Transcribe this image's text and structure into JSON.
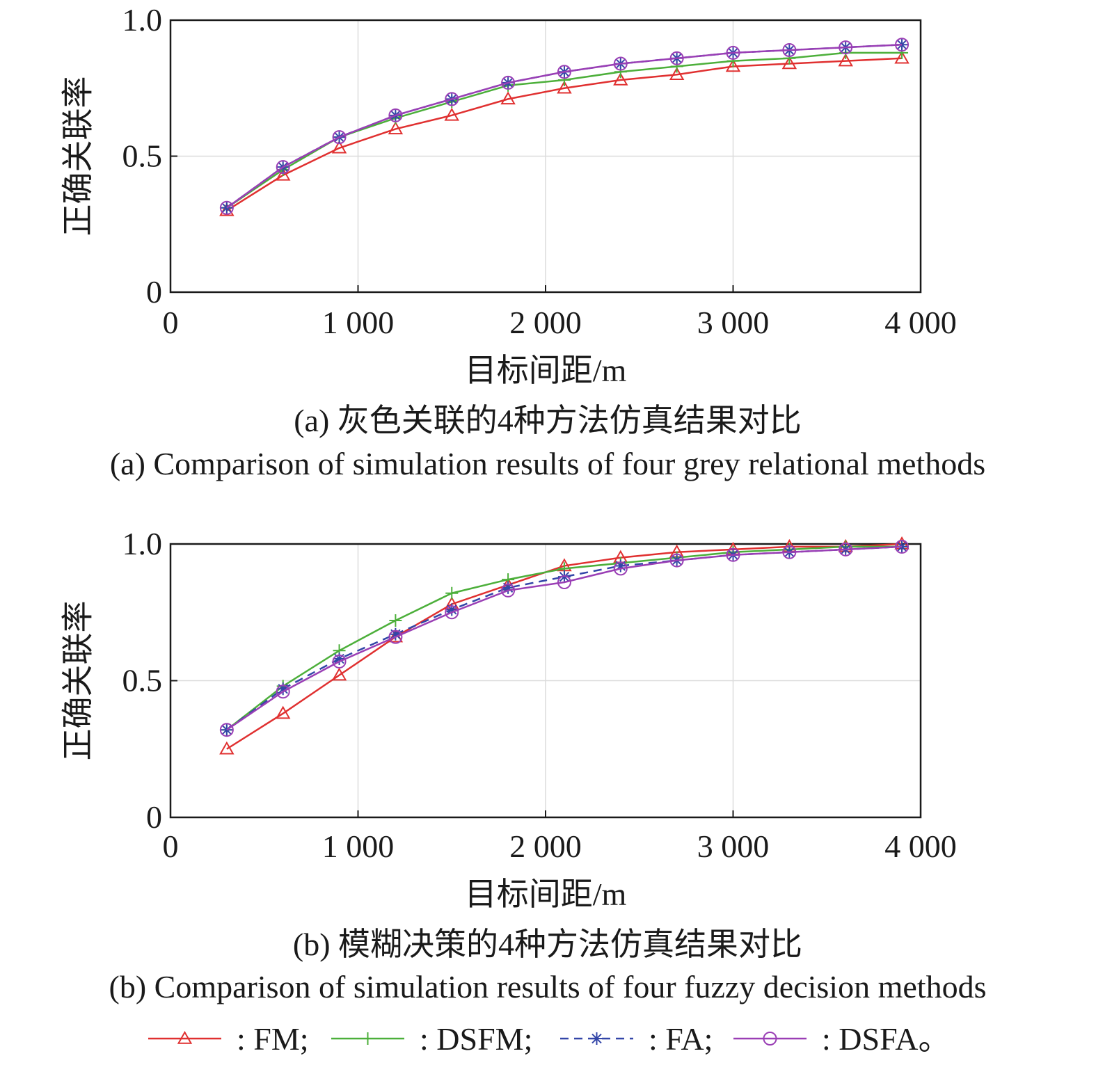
{
  "chart_data": [
    {
      "type": "line",
      "panel_cn": "(a) 灰色关联的4种方法仿真结果对比",
      "panel_en": "(a) Comparison of simulation results of four grey relational methods",
      "xlabel": "目标间距/m",
      "ylabel": "正确关联率",
      "xlim": [
        0,
        4000
      ],
      "ylim": [
        0,
        1.0
      ],
      "xticks": [
        "0",
        "1 000",
        "2 000",
        "3 000",
        "4 000"
      ],
      "yticks": [
        "0",
        "0.5",
        "1.0"
      ],
      "grid": true,
      "x": [
        300,
        600,
        900,
        1200,
        1500,
        1800,
        2100,
        2400,
        2700,
        3000,
        3300,
        3600,
        3900
      ],
      "series": [
        {
          "name": "FM",
          "color": "#e03030",
          "marker": "triangle",
          "dash": "solid",
          "values": [
            0.3,
            0.43,
            0.53,
            0.6,
            0.65,
            0.71,
            0.75,
            0.78,
            0.8,
            0.83,
            0.84,
            0.85,
            0.86
          ]
        },
        {
          "name": "DSFM",
          "color": "#4caf3a",
          "marker": "plus",
          "dash": "solid",
          "values": [
            0.31,
            0.45,
            0.57,
            0.64,
            0.7,
            0.76,
            0.78,
            0.81,
            0.83,
            0.85,
            0.86,
            0.88,
            0.88
          ]
        },
        {
          "name": "FA",
          "color": "#3346a8",
          "marker": "star",
          "dash": "dashed",
          "values": [
            0.31,
            0.46,
            0.57,
            0.65,
            0.71,
            0.77,
            0.81,
            0.84,
            0.86,
            0.88,
            0.89,
            0.9,
            0.91
          ]
        },
        {
          "name": "DSFA",
          "color": "#9a3fb5",
          "marker": "circle",
          "dash": "solid",
          "values": [
            0.31,
            0.46,
            0.57,
            0.65,
            0.71,
            0.77,
            0.81,
            0.84,
            0.86,
            0.88,
            0.89,
            0.9,
            0.91
          ]
        }
      ]
    },
    {
      "type": "line",
      "panel_cn": "(b) 模糊决策的4种方法仿真结果对比",
      "panel_en": "(b) Comparison of simulation results of four fuzzy decision methods",
      "xlabel": "目标间距/m",
      "ylabel": "正确关联率",
      "xlim": [
        0,
        4000
      ],
      "ylim": [
        0,
        1.0
      ],
      "xticks": [
        "0",
        "1 000",
        "2 000",
        "3 000",
        "4 000"
      ],
      "yticks": [
        "0",
        "0.5",
        "1.0"
      ],
      "grid": true,
      "x": [
        300,
        600,
        900,
        1200,
        1500,
        1800,
        2100,
        2400,
        2700,
        3000,
        3300,
        3600,
        3900
      ],
      "series": [
        {
          "name": "FM",
          "color": "#e03030",
          "marker": "triangle",
          "dash": "solid",
          "values": [
            0.25,
            0.38,
            0.52,
            0.66,
            0.78,
            0.85,
            0.92,
            0.95,
            0.97,
            0.98,
            0.99,
            0.99,
            1.0
          ]
        },
        {
          "name": "DSFM",
          "color": "#4caf3a",
          "marker": "plus",
          "dash": "solid",
          "values": [
            0.32,
            0.48,
            0.61,
            0.72,
            0.82,
            0.87,
            0.91,
            0.93,
            0.95,
            0.97,
            0.98,
            0.99,
            0.99
          ]
        },
        {
          "name": "FA",
          "color": "#3346a8",
          "marker": "star",
          "dash": "dashed",
          "values": [
            0.32,
            0.47,
            0.58,
            0.67,
            0.76,
            0.84,
            0.88,
            0.92,
            0.94,
            0.96,
            0.97,
            0.98,
            0.99
          ]
        },
        {
          "name": "DSFA",
          "color": "#9a3fb5",
          "marker": "circle",
          "dash": "solid",
          "values": [
            0.32,
            0.46,
            0.57,
            0.66,
            0.75,
            0.83,
            0.86,
            0.91,
            0.94,
            0.96,
            0.97,
            0.98,
            0.99
          ]
        }
      ]
    }
  ],
  "legend": {
    "items": [
      {
        "label": ": FM;",
        "series": "FM"
      },
      {
        "label": ": DSFM;",
        "series": "DSFM"
      },
      {
        "label": ": FA;",
        "series": "FA"
      },
      {
        "label": ": DSFA。",
        "series": "DSFA"
      }
    ]
  }
}
